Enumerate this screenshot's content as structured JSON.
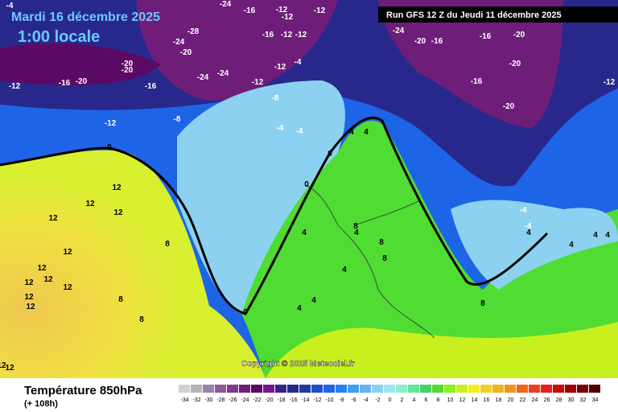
{
  "header": {
    "date": "Mardi 16 décembre 2025",
    "time": "1:00 locale",
    "run": "Run GFS 12 Z du Jeudi 11 décembre 2025"
  },
  "map": {
    "copyright": "Copyright © 2025 Meteociel.fr",
    "contour_labels": [
      "-4",
      "-24",
      "-16",
      "-12",
      "-12",
      "-12",
      "-16",
      "-12",
      "-12",
      "-28",
      "-24",
      "-20",
      "-20",
      "-20",
      "-12",
      "-16",
      "-20",
      "-16",
      "-24",
      "-24",
      "-12",
      "-12",
      "-4",
      "-8",
      "-12",
      "-8",
      "-4",
      "-4",
      "-24",
      "-20",
      "-16",
      "-16",
      "-20",
      "-20",
      "-16",
      "-20",
      "-12",
      "0",
      "12",
      "12",
      "12",
      "12",
      "12",
      "12",
      "8",
      "12",
      "12",
      "12",
      "12",
      "12",
      "8",
      "8",
      "0",
      "4",
      "4",
      "4",
      "4",
      "8",
      "8",
      "8",
      "4",
      "8",
      "4",
      "4",
      "4",
      "4",
      "-4",
      "-4",
      "0",
      "0",
      "4",
      "4",
      "12",
      "12"
    ]
  },
  "legend": {
    "title": "Température 850hPa",
    "lead": "(+ 108h)",
    "ticks": [
      -34,
      -32,
      -30,
      -28,
      -26,
      -24,
      -22,
      -20,
      -18,
      -16,
      -14,
      -12,
      -10,
      -8,
      -6,
      -4,
      -2,
      0,
      2,
      4,
      6,
      8,
      10,
      12,
      14,
      16,
      18,
      20,
      22,
      24,
      26,
      28,
      30,
      32,
      34
    ],
    "colors": [
      "#d2d2d2",
      "#b4b4b4",
      "#9a7fa6",
      "#8c5a9a",
      "#7d3c8c",
      "#6e1e78",
      "#5a0a64",
      "#78148c",
      "#3c1e8c",
      "#28288c",
      "#1e3ca0",
      "#1e50c8",
      "#1e64e6",
      "#2882f0",
      "#3ca0f0",
      "#64b4f0",
      "#8cd2f0",
      "#a0e6f0",
      "#8cf0c8",
      "#64e696",
      "#46d264",
      "#50dc32",
      "#8cf01e",
      "#c8f01e",
      "#f0f01e",
      "#f0d21e",
      "#f0b41e",
      "#f0961e",
      "#f0641e",
      "#f03c1e",
      "#e61e1e",
      "#c80a0a",
      "#a00000",
      "#780000",
      "#500000"
    ]
  }
}
